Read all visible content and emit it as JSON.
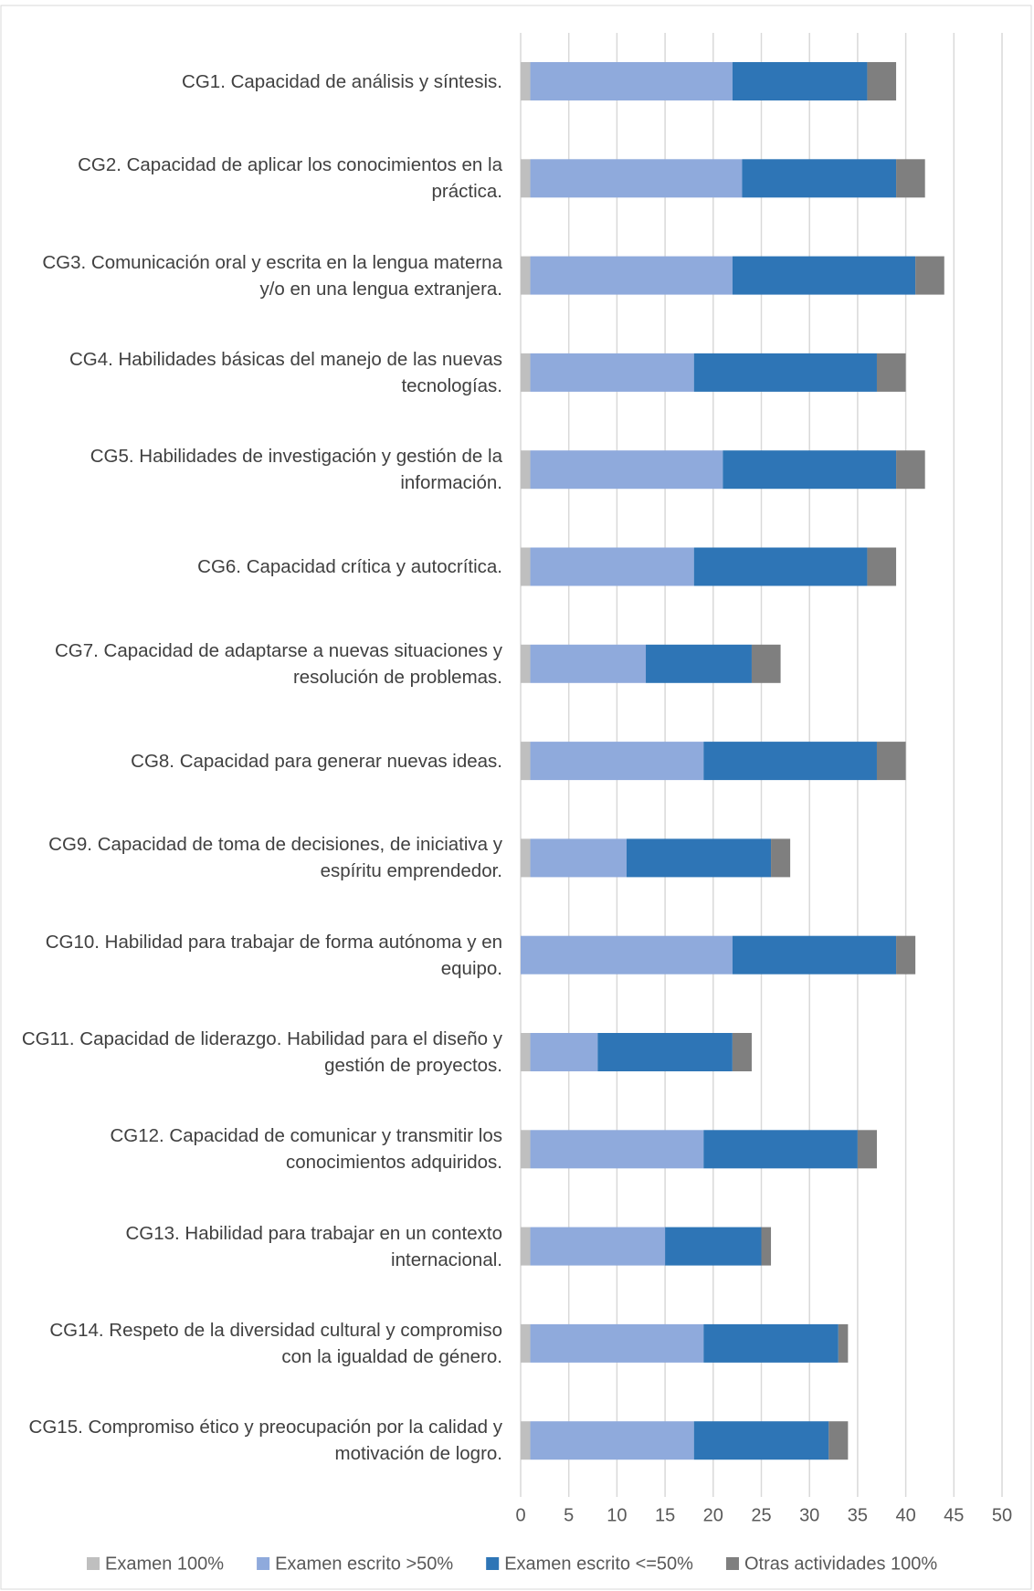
{
  "chart_data": {
    "type": "stacked_barh",
    "categories": [
      "CG1. Capacidad de análisis y síntesis.",
      "CG2. Capacidad de aplicar los conocimientos en la práctica.",
      "CG3. Comunicación oral y escrita en la lengua materna y/o en una lengua extranjera.",
      "CG4. Habilidades básicas del manejo de las nuevas tecnologías.",
      "CG5. Habilidades de investigación y gestión de la información.",
      "CG6. Capacidad crítica y autocrítica.",
      "CG7. Capacidad de adaptarse a nuevas situaciones y resolución de problemas.",
      "CG8. Capacidad para generar nuevas ideas.",
      "CG9. Capacidad de toma de decisiones, de iniciativa y espíritu emprendedor.",
      "CG10. Habilidad para trabajar de forma autónoma y en equipo.",
      "CG11. Capacidad de liderazgo. Habilidad para el diseño y gestión de proyectos.",
      "CG12. Capacidad de comunicar y transmitir los conocimientos adquiridos.",
      "CG13. Habilidad para trabajar en un contexto internacional.",
      "CG14. Respeto de la diversidad cultural y compromiso con la igualdad de género.",
      "CG15. Compromiso ético y preocupación por la calidad y motivación de logro."
    ],
    "series": [
      {
        "name": "Examen 100%",
        "color": "#bfbfbf",
        "values": [
          1,
          1,
          1,
          1,
          1,
          1,
          1,
          1,
          1,
          0,
          1,
          1,
          1,
          1,
          1
        ]
      },
      {
        "name": "Examen escrito >50%",
        "color": "#8faadc",
        "values": [
          21,
          22,
          21,
          17,
          20,
          17,
          12,
          18,
          10,
          22,
          7,
          18,
          14,
          18,
          17
        ]
      },
      {
        "name": "Examen escrito <=50%",
        "color": "#2e75b6",
        "values": [
          14,
          16,
          19,
          19,
          18,
          18,
          11,
          18,
          15,
          17,
          14,
          16,
          10,
          14,
          14
        ]
      },
      {
        "name": "Otras actividades 100%",
        "color": "#7f7f7f",
        "values": [
          3,
          3,
          3,
          3,
          3,
          3,
          3,
          3,
          2,
          2,
          2,
          2,
          1,
          1,
          2
        ]
      }
    ],
    "xlim": [
      0,
      50
    ],
    "xticks": [
      0,
      5,
      10,
      15,
      20,
      25,
      30,
      35,
      40,
      45,
      50
    ],
    "grid": true,
    "legend": "bottom"
  }
}
